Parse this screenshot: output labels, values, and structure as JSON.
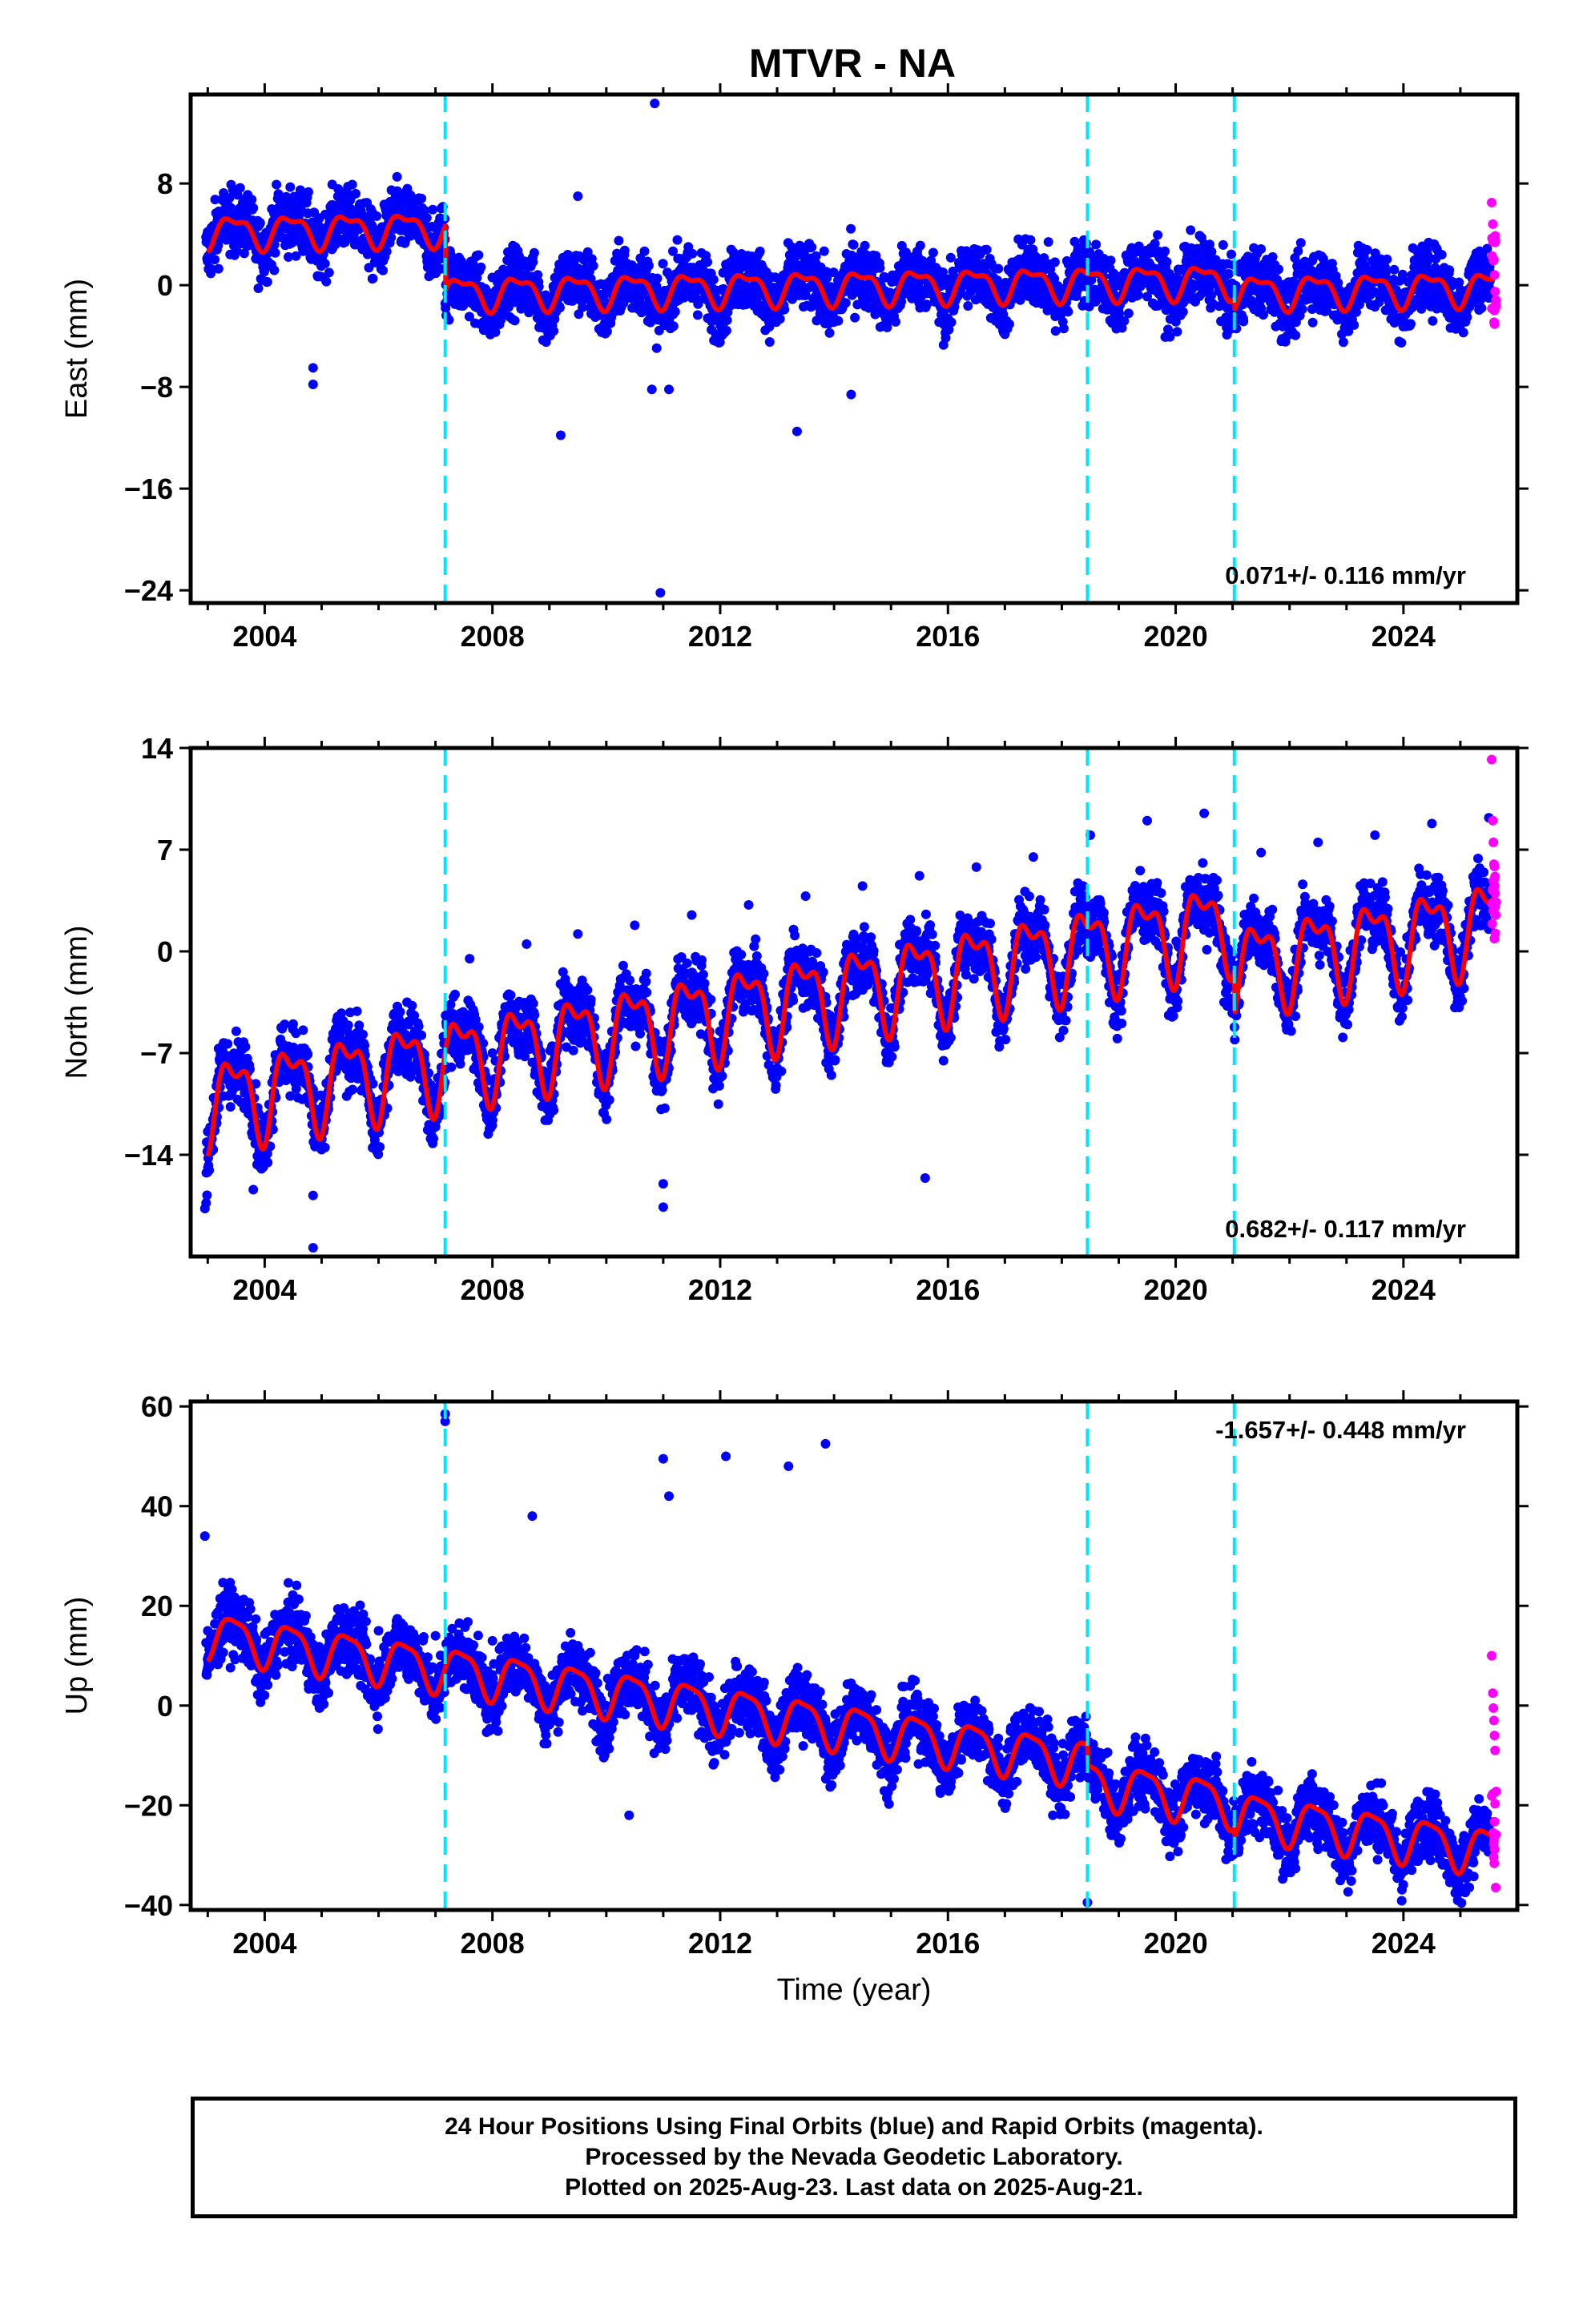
{
  "title": "MTVR - NA",
  "colors": {
    "final_orbits": "#0000ff",
    "rapid_orbits": "#ff00ff",
    "model_fit": "#ff0000",
    "offset_markers": "#00e5ff",
    "frame": "#000000"
  },
  "chart_data": [
    {
      "type": "scatter",
      "component": "east",
      "ylabel": "East (mm)",
      "xlabel": "",
      "xlim": [
        2002.7,
        2026.0
      ],
      "ylim": [
        -25,
        15
      ],
      "xticks": [
        2004,
        2008,
        2012,
        2016,
        2020,
        2024
      ],
      "yticks": [
        8,
        0,
        -8,
        -16,
        -24
      ],
      "rate_text": "0.071+/- 0.116 mm/yr",
      "offsets": [
        2007.17,
        2018.45,
        2021.03
      ],
      "series": [
        {
          "name": "",
          "color": "#0000ff",
          "points": [
            [
              2003.0,
              4.2
            ],
            [
              2003.5,
              4.8
            ],
            [
              2004.0,
              3.9
            ],
            [
              2004.5,
              5.2
            ],
            [
              2005.0,
              3.5
            ],
            [
              2005.5,
              5.0
            ],
            [
              2006.0,
              3.6
            ],
            [
              2006.5,
              5.4
            ],
            [
              2007.0,
              4.5
            ],
            [
              2007.3,
              -0.9
            ],
            [
              2008.0,
              -1.5
            ],
            [
              2008.6,
              0.8
            ],
            [
              2009.5,
              -1.0
            ],
            [
              2010.5,
              0.5
            ],
            [
              2011.5,
              -1.0
            ],
            [
              2012.5,
              0.6
            ],
            [
              2013.5,
              -0.8
            ],
            [
              2014.5,
              0.8
            ],
            [
              2015.5,
              -0.3
            ],
            [
              2016.5,
              0.9
            ],
            [
              2017.5,
              -0.2
            ],
            [
              2018.5,
              0.4
            ],
            [
              2019.5,
              -0.9
            ],
            [
              2020.5,
              0.3
            ],
            [
              2021.5,
              -1.8
            ],
            [
              2022.5,
              -0.6
            ],
            [
              2023.5,
              -1.7
            ],
            [
              2024.5,
              -0.4
            ],
            [
              2025.5,
              -1.0
            ]
          ]
        },
        {
          "name": "",
          "color": "#ff00ff",
          "points": [
            [
              2025.55,
              6.5
            ],
            [
              2025.57,
              4.8
            ],
            [
              2025.58,
              3.5
            ],
            [
              2025.59,
              2.0
            ],
            [
              2025.6,
              0.8
            ],
            [
              2025.61,
              -0.5
            ],
            [
              2025.62,
              -1.5
            ]
          ]
        }
      ],
      "outliers": [
        [
          2010.85,
          14.3
        ],
        [
          2010.95,
          -24.2
        ],
        [
          2009.5,
          7.0
        ],
        [
          2004.85,
          -6.5
        ],
        [
          2004.85,
          -7.8
        ],
        [
          2009.2,
          -11.8
        ],
        [
          2013.35,
          -11.5
        ],
        [
          2014.3,
          -8.6
        ],
        [
          2010.8,
          -8.2
        ],
        [
          2011.1,
          -8.2
        ]
      ],
      "model": {
        "intercept": 4.2,
        "rate": 0.071,
        "annual_amplitude": 1.2,
        "semiannual_amplitude": 0.5,
        "steps": [
          [
            2007.17,
            -5.1
          ],
          [
            2021.03,
            -0.9
          ]
        ]
      }
    },
    {
      "type": "scatter",
      "component": "north",
      "ylabel": "North (mm)",
      "xlabel": "",
      "xlim": [
        2002.7,
        2026.0
      ],
      "ylim": [
        -21,
        14
      ],
      "xticks": [
        2004,
        2008,
        2012,
        2016,
        2020,
        2024
      ],
      "yticks": [
        14,
        7,
        0,
        -7,
        -14
      ],
      "rate_text": "0.682+/- 0.117 mm/yr",
      "offsets": [
        2007.17,
        2018.45,
        2021.03
      ],
      "series": [
        {
          "name": "",
          "color": "#0000ff",
          "points": [
            [
              2003.0,
              -12.4
            ],
            [
              2003.5,
              -5.5
            ],
            [
              2004.0,
              -11.5
            ],
            [
              2004.5,
              -5.0
            ],
            [
              2005.0,
              -10.8
            ],
            [
              2005.5,
              -4.2
            ],
            [
              2006.0,
              -10.5
            ],
            [
              2006.5,
              -3.5
            ],
            [
              2007.0,
              -9.8
            ],
            [
              2007.6,
              -0.5
            ],
            [
              2008.0,
              -7.0
            ],
            [
              2008.6,
              0.5
            ],
            [
              2009.5,
              1.2
            ],
            [
              2010.5,
              1.8
            ],
            [
              2011.5,
              2.5
            ],
            [
              2012.5,
              3.2
            ],
            [
              2013.5,
              3.8
            ],
            [
              2014.5,
              4.5
            ],
            [
              2015.5,
              5.2
            ],
            [
              2016.5,
              5.8
            ],
            [
              2017.5,
              6.5
            ],
            [
              2018.5,
              8.0
            ],
            [
              2019.5,
              9.0
            ],
            [
              2020.5,
              9.5
            ],
            [
              2021.5,
              6.8
            ],
            [
              2022.5,
              7.5
            ],
            [
              2023.5,
              8.0
            ],
            [
              2024.5,
              8.8
            ],
            [
              2025.5,
              9.2
            ]
          ]
        },
        {
          "name": "",
          "color": "#ff00ff",
          "points": [
            [
              2025.55,
              13.2
            ],
            [
              2025.57,
              9.0
            ],
            [
              2025.58,
              7.5
            ],
            [
              2025.59,
              6.0
            ],
            [
              2025.6,
              5.0
            ],
            [
              2025.61,
              4.0
            ],
            [
              2025.62,
              2.5
            ]
          ]
        }
      ],
      "outliers": [
        [
          2002.95,
          -17.7
        ],
        [
          2004.85,
          -20.4
        ],
        [
          2004.85,
          -16.8
        ],
        [
          2011.0,
          -16.0
        ],
        [
          2011.0,
          -17.6
        ],
        [
          2015.6,
          -15.6
        ],
        [
          2003.8,
          -16.4
        ],
        [
          2020.85,
          -3.5
        ]
      ],
      "model": {
        "intercept": -10.3,
        "rate": 0.682,
        "annual_amplitude": 2.7,
        "semiannual_amplitude": 1.3,
        "steps": [
          [
            2021.03,
            -3.0
          ]
        ]
      }
    },
    {
      "type": "scatter",
      "component": "up",
      "ylabel": "Up (mm)",
      "xlabel": "Time (year)",
      "xlim": [
        2002.7,
        2026.0
      ],
      "ylim": [
        -41,
        61
      ],
      "xticks": [
        2004,
        2008,
        2012,
        2016,
        2020,
        2024
      ],
      "yticks": [
        60,
        40,
        20,
        0,
        -20,
        -40
      ],
      "rate_text": "-1.657+/- 0.448 mm/yr",
      "offsets": [
        2007.17,
        2018.45,
        2021.03
      ],
      "series": [
        {
          "name": "",
          "color": "#0000ff",
          "points": [
            [
              2003.0,
              15.0
            ],
            [
              2003.6,
              19.0
            ],
            [
              2004.0,
              9.0
            ],
            [
              2004.7,
              17.0
            ],
            [
              2005.5,
              7.0
            ],
            [
              2006.0,
              15.0
            ],
            [
              2006.5,
              6.0
            ],
            [
              2007.0,
              14.0
            ],
            [
              2007.5,
              6.0
            ],
            [
              2008.0,
              13.0
            ],
            [
              2008.7,
              5.0
            ],
            [
              2009.5,
              12.0
            ],
            [
              2010.5,
              10.0
            ],
            [
              2011.5,
              8.0
            ],
            [
              2012.5,
              6.0
            ],
            [
              2013.5,
              4.0
            ],
            [
              2014.5,
              2.0
            ],
            [
              2015.5,
              0.0
            ],
            [
              2016.5,
              -3.0
            ],
            [
              2017.5,
              -6.0
            ],
            [
              2018.5,
              -14.0
            ],
            [
              2019.5,
              -16.0
            ],
            [
              2020.5,
              -17.0
            ],
            [
              2021.5,
              -18.0
            ],
            [
              2022.5,
              -19.0
            ],
            [
              2023.5,
              -21.0
            ],
            [
              2024.5,
              -22.0
            ],
            [
              2025.5,
              -24.0
            ]
          ]
        },
        {
          "name": "",
          "color": "#ff00ff",
          "points": [
            [
              2025.55,
              10.0
            ],
            [
              2025.57,
              2.5
            ],
            [
              2025.58,
              -0.5
            ],
            [
              2025.59,
              -3.0
            ],
            [
              2025.6,
              -6.0
            ],
            [
              2025.61,
              -9.0
            ],
            [
              2025.62,
              -36.5
            ]
          ]
        }
      ],
      "outliers": [
        [
          2007.17,
          58.5
        ],
        [
          2007.17,
          57.0
        ],
        [
          2013.85,
          52.5
        ],
        [
          2012.1,
          50.0
        ],
        [
          2011.0,
          49.5
        ],
        [
          2013.2,
          48.0
        ],
        [
          2011.1,
          42.0
        ],
        [
          2018.45,
          -39.5
        ],
        [
          2010.4,
          -22.0
        ],
        [
          2002.95,
          34.0
        ],
        [
          2008.7,
          38.0
        ]
      ],
      "model": {
        "intercept": 14.3,
        "rate": -1.657,
        "annual_amplitude": 4.5,
        "semiannual_amplitude": 1.2,
        "steps": [
          [
            2018.45,
            -4.0
          ],
          [
            2021.03,
            -2.0
          ]
        ]
      }
    }
  ],
  "footer": {
    "line1": "24 Hour Positions Using Final Orbits (blue) and Rapid Orbits (magenta).",
    "line2": "Processed by the Nevada Geodetic Laboratory.",
    "line3": "Plotted on 2025-Aug-23. Last data on 2025-Aug-21."
  }
}
